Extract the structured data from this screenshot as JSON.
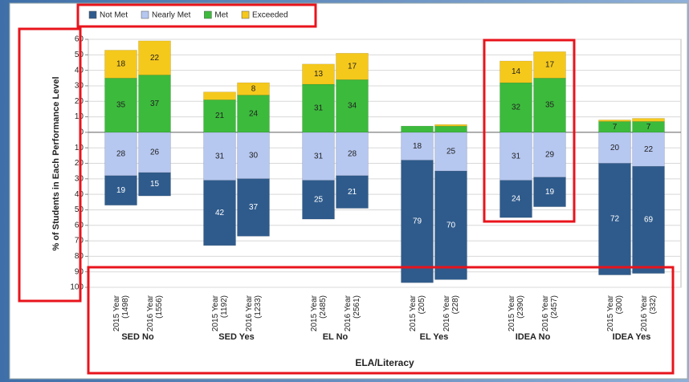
{
  "chart_data": {
    "type": "diverging-stacked-bar",
    "y_axis_label": "% of Students in Each Performance Level",
    "x_axis_label": "ELA/Literacy",
    "groups": [
      "SED No",
      "SED Yes",
      "EL No",
      "EL Yes",
      "IDEA No",
      "IDEA Yes"
    ],
    "categories": [
      [
        "2015 Year",
        "(1498)"
      ],
      [
        "2016 Year",
        "(1556)"
      ],
      [
        "2015 Year",
        "(1192)"
      ],
      [
        "2016 Year",
        "(1233)"
      ],
      [
        "2015 Year",
        "(2485)"
      ],
      [
        "2016 Year",
        "(2561)"
      ],
      [
        "2015 Year",
        "(205)"
      ],
      [
        "2016 Year",
        "(228)"
      ],
      [
        "2015 Year",
        "(2390)"
      ],
      [
        "2016 Year",
        "(2457)"
      ],
      [
        "2015 Year",
        "(300)"
      ],
      [
        "2016 Year",
        "(332)"
      ]
    ],
    "series": [
      {
        "name": "Not Met",
        "color": "#2f5b8c",
        "values": [
          -19,
          -15,
          -42,
          -37,
          -25,
          -21,
          -79,
          -70,
          -24,
          -19,
          -72,
          -69
        ],
        "value_labels": [
          "19",
          "15",
          "42",
          "37",
          "25",
          "21",
          "79",
          "70",
          "24",
          "19",
          "72",
          "69"
        ]
      },
      {
        "name": "Nearly Met",
        "color": "#b6c7f0",
        "values": [
          -28,
          -26,
          -31,
          -30,
          -31,
          -28,
          -18,
          -25,
          -31,
          -29,
          -20,
          -22
        ],
        "value_labels": [
          "28",
          "26",
          "31",
          "30",
          "31",
          "28",
          "18",
          "25",
          "31",
          "29",
          "20",
          "22"
        ]
      },
      {
        "name": "Met",
        "color": "#3cba3c",
        "values": [
          35,
          37,
          21,
          24,
          31,
          34,
          4,
          4,
          32,
          35,
          7,
          7
        ],
        "value_labels": [
          "35",
          "37",
          "21",
          "24",
          "31",
          "34",
          null,
          null,
          "32",
          "35",
          "7",
          "7"
        ]
      },
      {
        "name": "Exceeded",
        "color": "#f5c81c",
        "values": [
          18,
          22,
          5,
          8,
          13,
          17,
          0,
          1,
          14,
          17,
          1,
          2
        ],
        "value_labels": [
          "18",
          "22",
          null,
          "8",
          "13",
          "17",
          null,
          null,
          "14",
          "17",
          null,
          null
        ]
      }
    ],
    "ylim": [
      -100,
      60
    ],
    "yticks": [
      {
        "value": -100,
        "label": "100"
      },
      {
        "value": -90,
        "label": "90"
      },
      {
        "value": -80,
        "label": "80"
      },
      {
        "value": -70,
        "label": "70"
      },
      {
        "value": -60,
        "label": "60"
      },
      {
        "value": -50,
        "label": "50"
      },
      {
        "value": -40,
        "label": "40"
      },
      {
        "value": -30,
        "label": "30"
      },
      {
        "value": -20,
        "label": "20"
      },
      {
        "value": -10,
        "label": "10"
      },
      0,
      10,
      20,
      30,
      40,
      50,
      60
    ],
    "grid": true
  }
}
